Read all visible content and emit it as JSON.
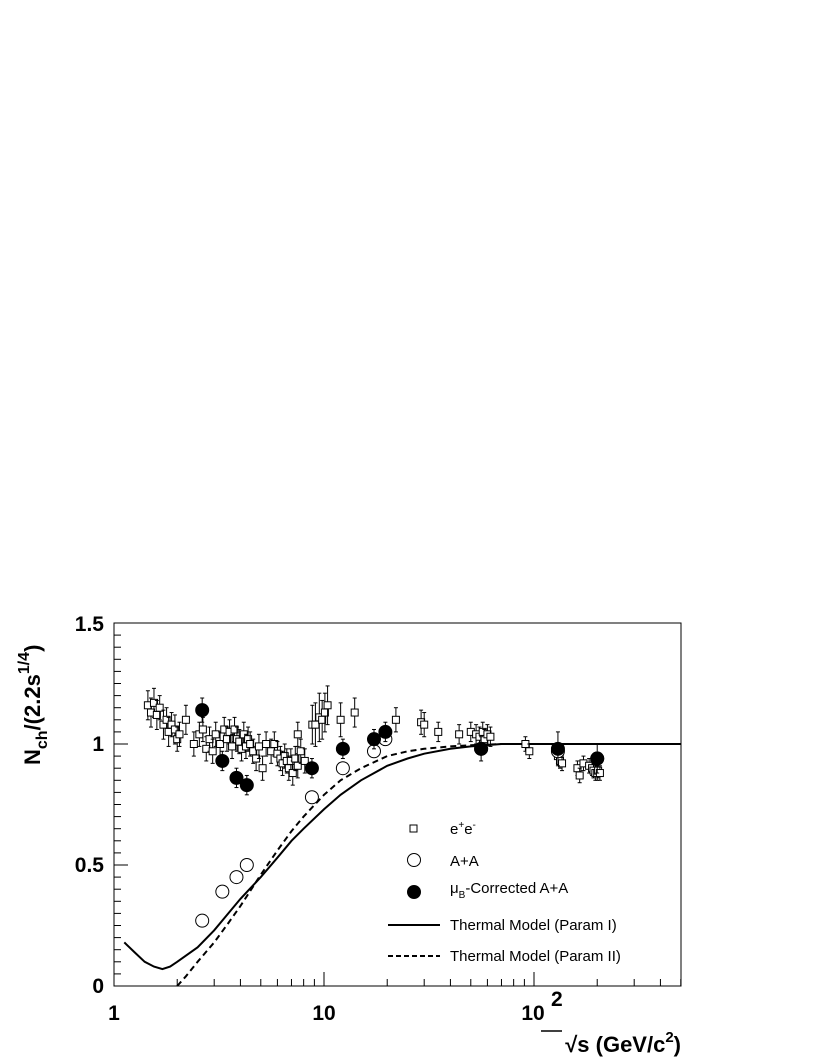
{
  "chart_data": {
    "type": "scatter",
    "x_scale": "log",
    "xlim": [
      1,
      500
    ],
    "ylim": [
      0,
      1.5
    ],
    "x_tick_labels": [
      "1",
      "10",
      "10",
      "2"
    ],
    "y_tick_labels": [
      "0",
      "0.5",
      "1",
      "1.5"
    ],
    "y_ticks": [
      0,
      0.5,
      1,
      1.5
    ],
    "xlabel_parts": [
      "√s (GeV/c",
      "2",
      ")"
    ],
    "ylabel_parts": [
      "N",
      "ch",
      "/(2.2s",
      "1/4",
      ")"
    ],
    "grid": false,
    "legend_placement": "lower-right",
    "series": [
      {
        "name": "e+e-",
        "legend_parts": [
          "e",
          "+",
          "e",
          "-"
        ],
        "marker": "open-square",
        "points": [
          [
            1.45,
            1.16,
            0.06
          ],
          [
            1.5,
            1.13,
            0.06
          ],
          [
            1.55,
            1.17,
            0.06
          ],
          [
            1.6,
            1.12,
            0.06
          ],
          [
            1.65,
            1.15,
            0.05
          ],
          [
            1.72,
            1.08,
            0.06
          ],
          [
            1.78,
            1.1,
            0.05
          ],
          [
            1.82,
            1.05,
            0.06
          ],
          [
            1.88,
            1.08,
            0.05
          ],
          [
            1.95,
            1.06,
            0.06
          ],
          [
            2.0,
            1.02,
            0.05
          ],
          [
            2.05,
            1.04,
            0.05
          ],
          [
            2.2,
            1.1,
            0.06
          ],
          [
            2.4,
            1.0,
            0.05
          ],
          [
            2.55,
            1.04,
            0.05
          ],
          [
            2.65,
            1.06,
            0.05
          ],
          [
            2.75,
            0.98,
            0.05
          ],
          [
            2.85,
            1.02,
            0.05
          ],
          [
            2.95,
            0.97,
            0.05
          ],
          [
            3.05,
            1.04,
            0.05
          ],
          [
            3.2,
            1.0,
            0.05
          ],
          [
            3.35,
            1.06,
            0.05
          ],
          [
            3.45,
            1.02,
            0.05
          ],
          [
            3.55,
            1.05,
            0.05
          ],
          [
            3.65,
            0.99,
            0.05
          ],
          [
            3.75,
            1.06,
            0.05
          ],
          [
            3.85,
            1.02,
            0.05
          ],
          [
            3.95,
            1.01,
            0.05
          ],
          [
            4.05,
            0.98,
            0.05
          ],
          [
            4.15,
            1.04,
            0.05
          ],
          [
            4.25,
            0.99,
            0.05
          ],
          [
            4.35,
            1.02,
            0.05
          ],
          [
            4.45,
            1.0,
            0.05
          ],
          [
            4.6,
            0.97,
            0.05
          ],
          [
            4.75,
            0.94,
            0.05
          ],
          [
            4.9,
            0.99,
            0.05
          ],
          [
            5.1,
            0.9,
            0.05
          ],
          [
            5.3,
            1.0,
            0.05
          ],
          [
            5.6,
            0.97,
            0.05
          ],
          [
            5.8,
            1.0,
            0.05
          ],
          [
            6.0,
            0.96,
            0.05
          ],
          [
            6.2,
            0.94,
            0.05
          ],
          [
            6.35,
            0.92,
            0.05
          ],
          [
            6.5,
            0.95,
            0.05
          ],
          [
            6.65,
            0.93,
            0.05
          ],
          [
            6.8,
            0.9,
            0.05
          ],
          [
            6.95,
            0.93,
            0.05
          ],
          [
            7.1,
            0.88,
            0.05
          ],
          [
            7.3,
            0.94,
            0.05
          ],
          [
            7.5,
            0.91,
            0.05
          ],
          [
            7.75,
            0.97,
            0.05
          ],
          [
            7.5,
            1.04,
            0.05
          ],
          [
            8.1,
            0.93,
            0.05
          ],
          [
            8.8,
            1.08,
            0.08
          ],
          [
            9.1,
            1.08,
            0.09
          ],
          [
            9.5,
            1.11,
            0.1
          ],
          [
            9.8,
            1.1,
            0.08
          ],
          [
            10.1,
            1.13,
            0.08
          ],
          [
            10.4,
            1.16,
            0.08
          ],
          [
            12.0,
            1.1,
            0.07
          ],
          [
            14.0,
            1.13,
            0.06
          ],
          [
            22.0,
            1.1,
            0.05
          ],
          [
            29.0,
            1.09,
            0.05
          ],
          [
            30.0,
            1.08,
            0.05
          ],
          [
            35.0,
            1.05,
            0.04
          ],
          [
            44.0,
            1.04,
            0.04
          ],
          [
            50.0,
            1.05,
            0.04
          ],
          [
            53.0,
            1.04,
            0.04
          ],
          [
            55.0,
            1.03,
            0.04
          ],
          [
            57.0,
            1.05,
            0.04
          ],
          [
            58.0,
            1.02,
            0.04
          ],
          [
            60.0,
            1.04,
            0.04
          ],
          [
            62.0,
            1.03,
            0.04
          ],
          [
            91.0,
            1.0,
            0.03
          ],
          [
            95.0,
            0.97,
            0.03
          ],
          [
            130.0,
            0.95,
            0.03
          ],
          [
            133.0,
            0.93,
            0.03
          ],
          [
            136.0,
            0.92,
            0.03
          ],
          [
            161.0,
            0.9,
            0.03
          ],
          [
            165.0,
            0.87,
            0.03
          ],
          [
            172.0,
            0.92,
            0.03
          ],
          [
            183.0,
            0.91,
            0.03
          ],
          [
            189.0,
            0.9,
            0.03
          ],
          [
            192.0,
            0.89,
            0.03
          ],
          [
            196.0,
            0.88,
            0.03
          ],
          [
            200.0,
            0.88,
            0.03
          ],
          [
            202.0,
            0.89,
            0.03
          ],
          [
            206.0,
            0.88,
            0.03
          ]
        ]
      },
      {
        "name": "A+A",
        "legend_parts": [
          "A+A"
        ],
        "marker": "open-circle",
        "points": [
          [
            2.63,
            0.27,
            0
          ],
          [
            3.28,
            0.39,
            0
          ],
          [
            3.83,
            0.45,
            0
          ],
          [
            4.29,
            0.5,
            0
          ],
          [
            8.76,
            0.78,
            0
          ],
          [
            12.3,
            0.9,
            0
          ],
          [
            17.3,
            0.97,
            0
          ],
          [
            19.6,
            1.02,
            0
          ],
          [
            56.0,
            0.98,
            0
          ],
          [
            130.0,
            0.97,
            0
          ],
          [
            200.0,
            0.94,
            0
          ]
        ]
      },
      {
        "name": "μB-Corrected A+A",
        "legend_parts": [
          "μ",
          "B",
          "-Corrected A+A"
        ],
        "marker": "filled-circle",
        "points": [
          [
            2.63,
            1.14,
            0.05
          ],
          [
            3.28,
            0.93,
            0.04
          ],
          [
            3.83,
            0.86,
            0.04
          ],
          [
            4.29,
            0.83,
            0.04
          ],
          [
            8.76,
            0.9,
            0.04
          ],
          [
            12.3,
            0.98,
            0.04
          ],
          [
            17.3,
            1.02,
            0.04
          ],
          [
            19.6,
            1.05,
            0.04
          ],
          [
            56.0,
            0.98,
            0.05
          ],
          [
            130.0,
            0.98,
            0.07
          ],
          [
            200.0,
            0.94,
            0.06
          ]
        ]
      },
      {
        "name": "Thermal Model (Param I)",
        "legend_parts": [
          "Thermal Model (Param I)"
        ],
        "line": "solid",
        "points": [
          [
            1.12,
            0.18
          ],
          [
            1.25,
            0.14
          ],
          [
            1.4,
            0.1
          ],
          [
            1.55,
            0.08
          ],
          [
            1.7,
            0.07
          ],
          [
            1.85,
            0.08
          ],
          [
            2.0,
            0.1
          ],
          [
            2.5,
            0.16
          ],
          [
            3.0,
            0.23
          ],
          [
            3.5,
            0.3
          ],
          [
            4.0,
            0.36
          ],
          [
            5.0,
            0.45
          ],
          [
            6.0,
            0.53
          ],
          [
            7.0,
            0.6
          ],
          [
            8.0,
            0.65
          ],
          [
            10.0,
            0.73
          ],
          [
            12.0,
            0.79
          ],
          [
            15.0,
            0.85
          ],
          [
            20.0,
            0.91
          ],
          [
            25.0,
            0.94
          ],
          [
            30.0,
            0.96
          ],
          [
            40.0,
            0.98
          ],
          [
            50.0,
            0.99
          ],
          [
            70.0,
            1.0
          ],
          [
            100.0,
            1.0
          ],
          [
            500.0,
            1.0
          ]
        ]
      },
      {
        "name": "Thermal Model (Param II)",
        "legend_parts": [
          "Thermal Model (Param II)"
        ],
        "line": "dashed",
        "points": [
          [
            2.0,
            0.0
          ],
          [
            2.2,
            0.04
          ],
          [
            2.5,
            0.1
          ],
          [
            3.0,
            0.18
          ],
          [
            3.5,
            0.26
          ],
          [
            4.0,
            0.33
          ],
          [
            5.0,
            0.46
          ],
          [
            6.0,
            0.56
          ],
          [
            7.0,
            0.64
          ],
          [
            8.0,
            0.7
          ],
          [
            10.0,
            0.79
          ],
          [
            12.0,
            0.85
          ],
          [
            15.0,
            0.9
          ],
          [
            20.0,
            0.95
          ],
          [
            25.0,
            0.97
          ],
          [
            30.0,
            0.98
          ],
          [
            40.0,
            0.99
          ],
          [
            50.0,
            0.995
          ],
          [
            70.0,
            1.0
          ],
          [
            100.0,
            1.0
          ],
          [
            500.0,
            1.0
          ]
        ]
      }
    ]
  }
}
